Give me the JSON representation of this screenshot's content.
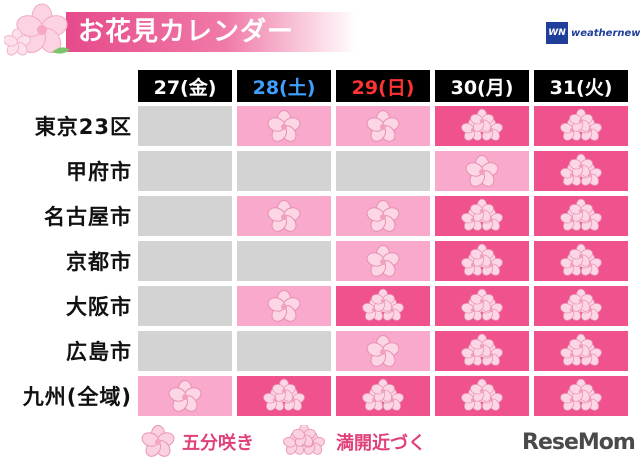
{
  "title": "お花見カレンダー",
  "brand": {
    "box": "WN",
    "name": "weathernews"
  },
  "columns": [
    {
      "label": "27(金)",
      "color": "#ffffff"
    },
    {
      "label": "28(土)",
      "color": "#3fa0ff"
    },
    {
      "label": "29(日)",
      "color": "#ff3333"
    },
    {
      "label": "30(月)",
      "color": "#ffffff"
    },
    {
      "label": "31(火)",
      "color": "#ffffff"
    }
  ],
  "rows": [
    {
      "city": "東京23区",
      "states": [
        "none",
        "gosaki",
        "gosaki",
        "mankai",
        "mankai"
      ]
    },
    {
      "city": "甲府市",
      "states": [
        "none",
        "none",
        "none",
        "gosaki",
        "mankai"
      ]
    },
    {
      "city": "名古屋市",
      "states": [
        "none",
        "gosaki",
        "gosaki",
        "mankai",
        "mankai"
      ]
    },
    {
      "city": "京都市",
      "states": [
        "none",
        "none",
        "gosaki",
        "mankai",
        "mankai"
      ]
    },
    {
      "city": "大阪市",
      "states": [
        "none",
        "gosaki",
        "mankai",
        "mankai",
        "mankai"
      ]
    },
    {
      "city": "広島市",
      "states": [
        "none",
        "none",
        "gosaki",
        "mankai",
        "mankai"
      ]
    },
    {
      "city": "九州(全域)",
      "states": [
        "gosaki",
        "mankai",
        "mankai",
        "mankai",
        "mankai"
      ]
    }
  ],
  "legend": {
    "gosaki": "五分咲き",
    "mankai": "満開近づく"
  },
  "colors": {
    "none": "#d3d3d3",
    "gosaki": "#f9a9cb",
    "mankai": "#f0528e",
    "title": "#e64a8a"
  },
  "footer_logo": "ReseMom"
}
